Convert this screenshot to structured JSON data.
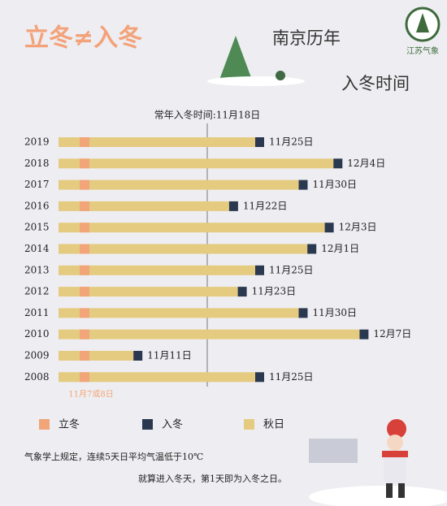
{
  "chart_data": {
    "type": "bar",
    "orientation": "horizontal",
    "title": "立冬≠入冬",
    "subtitle": [
      "南京历年",
      "入冬时间"
    ],
    "logo_text": "江苏气象",
    "reference_label": "常年入冬时间:11月18日",
    "lidong_label": "11月7或8日",
    "categories": [
      "2019",
      "2018",
      "2017",
      "2016",
      "2015",
      "2014",
      "2013",
      "2012",
      "2011",
      "2010",
      "2009",
      "2008"
    ],
    "values": [
      "2019-11-25",
      "2018-12-04",
      "2017-11-30",
      "2016-11-22",
      "2015-12-03",
      "2014-12-01",
      "2013-11-25",
      "2012-11-23",
      "2011-11-30",
      "2010-12-07",
      "2009-11-11",
      "2008-11-25"
    ],
    "value_labels": [
      "11月25日",
      "12月4日",
      "11月30日",
      "11月22日",
      "12月3日",
      "12月1日",
      "11月25日",
      "11月23日",
      "11月30日",
      "12月7日",
      "11月11日",
      "11月25日"
    ],
    "legend": [
      {
        "name": "立冬",
        "color": "#f2a578"
      },
      {
        "name": "入冬",
        "color": "#2b3950"
      },
      {
        "name": "秋日",
        "color": "#e4cb80"
      }
    ],
    "notes": [
      "气象学上规定，连续5天日平均气温低于10℃",
      "就算进入冬天，第1天即为入冬之日。"
    ]
  }
}
